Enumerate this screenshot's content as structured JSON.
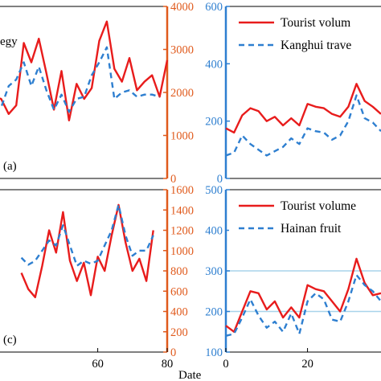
{
  "chart_data": [
    {
      "id": "a",
      "type": "line",
      "panel_label": "(a)",
      "text_fragment": "egy",
      "right_axis": {
        "ylim": [
          0,
          4000
        ],
        "ticks": [
          0,
          1000,
          2000,
          3000,
          4000
        ],
        "color": "#e05a1c"
      },
      "series": [
        {
          "axis": "right",
          "color": "#e81c1c",
          "style": "solid",
          "x": [
            0,
            2,
            4,
            6,
            8,
            10,
            12,
            14,
            16,
            18,
            20,
            22,
            24,
            26,
            28,
            30,
            32,
            34,
            36,
            38,
            40,
            42,
            44,
            46
          ],
          "values": [
            1900,
            1850,
            1500,
            1700,
            3150,
            2700,
            3250,
            2450,
            1600,
            2500,
            1350,
            2200,
            1850,
            2100,
            3200,
            3650,
            2550,
            2250,
            2800,
            2050,
            2250,
            2400,
            1900,
            2750
          ]
        },
        {
          "axis": "right",
          "color": "#2e7fd0",
          "style": "dashed",
          "x": [
            0,
            2,
            4,
            6,
            8,
            10,
            12,
            14,
            16,
            18,
            20,
            22,
            24,
            26,
            28,
            30,
            32,
            34,
            36,
            38,
            40,
            42,
            44
          ],
          "values": [
            1700,
            1650,
            2150,
            2300,
            2700,
            2150,
            2600,
            2050,
            1600,
            1950,
            1550,
            1850,
            1900,
            2400,
            2700,
            3050,
            1850,
            2000,
            2050,
            1900,
            1950,
            1950,
            1900
          ]
        }
      ]
    },
    {
      "id": "b",
      "type": "line",
      "left_axis": {
        "ylim": [
          0,
          600
        ],
        "ticks": [
          0,
          200,
          400,
          600
        ],
        "color": "#2e7fd0"
      },
      "legend": {
        "position": "top",
        "entries": [
          "Tourist volum",
          "Kanghui trave"
        ]
      },
      "series": [
        {
          "name": "Tourist volum",
          "color": "#e81c1c",
          "style": "solid",
          "x": [
            0,
            2,
            4,
            6,
            8,
            10,
            12,
            14,
            16,
            18,
            20,
            22,
            24,
            26,
            28,
            30,
            32,
            34,
            36,
            38
          ],
          "values": [
            175,
            160,
            220,
            245,
            235,
            200,
            215,
            185,
            210,
            185,
            260,
            250,
            245,
            225,
            215,
            250,
            330,
            270,
            250,
            225
          ]
        },
        {
          "name": "Kanghui trave",
          "color": "#2e7fd0",
          "style": "dashed",
          "x": [
            0,
            2,
            4,
            6,
            8,
            10,
            12,
            14,
            16,
            18,
            20,
            22,
            24,
            26,
            28,
            30,
            32,
            34,
            36,
            38
          ],
          "values": [
            80,
            90,
            150,
            120,
            100,
            80,
            95,
            110,
            140,
            120,
            175,
            165,
            160,
            135,
            150,
            200,
            290,
            210,
            195,
            165
          ]
        }
      ]
    },
    {
      "id": "c",
      "type": "line",
      "panel_label": "(c)",
      "xlabel": "Date",
      "x_ticks": [
        60,
        80
      ],
      "right_axis": {
        "ylim": [
          0,
          1600
        ],
        "ticks": [
          0,
          200,
          400,
          600,
          800,
          1000,
          1200,
          1400,
          1600
        ],
        "color": "#e05a1c"
      },
      "series": [
        {
          "axis": "right",
          "color": "#e81c1c",
          "style": "solid",
          "x": [
            38,
            40,
            42,
            44,
            46,
            48,
            50,
            52,
            54,
            56,
            58,
            60,
            62,
            64,
            66,
            68,
            70,
            72,
            74,
            76
          ],
          "values": [
            780,
            620,
            540,
            850,
            1200,
            980,
            1380,
            900,
            700,
            880,
            560,
            940,
            800,
            1150,
            1450,
            1080,
            800,
            920,
            700,
            1200
          ]
        },
        {
          "axis": "right",
          "color": "#2e7fd0",
          "style": "dashed",
          "x": [
            38,
            40,
            42,
            44,
            46,
            48,
            50,
            52,
            54,
            56,
            58,
            60,
            62,
            64,
            66,
            68,
            70,
            72,
            74,
            76
          ],
          "values": [
            930,
            860,
            900,
            1000,
            1100,
            1050,
            1250,
            1050,
            850,
            900,
            870,
            900,
            1050,
            1200,
            1450,
            1150,
            950,
            1000,
            1000,
            1150
          ]
        }
      ]
    },
    {
      "id": "d",
      "type": "line",
      "xlabel": "",
      "x_ticks": [
        0,
        20
      ],
      "left_axis": {
        "ylim": [
          100,
          500
        ],
        "ticks": [
          100,
          200,
          300,
          400,
          500
        ],
        "color": "#2e7fd0"
      },
      "reference_lines": [
        200,
        300
      ],
      "legend": {
        "position": "top",
        "entries": [
          "Tourist volume",
          "Hainan fruit"
        ]
      },
      "series": [
        {
          "name": "Tourist volume",
          "color": "#e81c1c",
          "style": "solid",
          "x": [
            0,
            2,
            4,
            6,
            8,
            10,
            12,
            14,
            16,
            18,
            20,
            22,
            24,
            26,
            28,
            30,
            32,
            34,
            36,
            38
          ],
          "values": [
            165,
            150,
            200,
            250,
            245,
            205,
            225,
            185,
            210,
            185,
            265,
            255,
            250,
            225,
            200,
            255,
            330,
            270,
            240,
            245
          ]
        },
        {
          "name": "Hainan fruit",
          "color": "#2e7fd0",
          "style": "dashed",
          "x": [
            0,
            2,
            4,
            6,
            8,
            10,
            12,
            14,
            16,
            18,
            20,
            22,
            24,
            26,
            28,
            30,
            32,
            34,
            36,
            38
          ],
          "values": [
            140,
            145,
            185,
            230,
            190,
            160,
            175,
            150,
            195,
            145,
            225,
            245,
            230,
            180,
            175,
            225,
            290,
            265,
            250,
            225
          ]
        }
      ]
    }
  ]
}
